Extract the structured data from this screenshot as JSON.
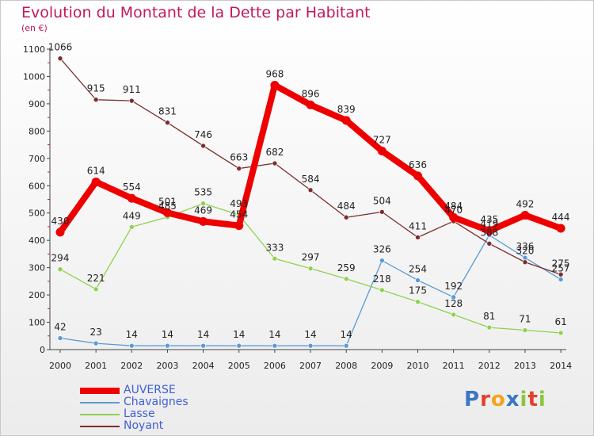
{
  "chart_data": {
    "type": "line",
    "title": "Evolution du Montant de la Dette par Habitant",
    "subtitle": "(en €)",
    "xlabel": "",
    "ylabel": "",
    "categories": [
      "2000",
      "2001",
      "2002",
      "2003",
      "2004",
      "2005",
      "2006",
      "2007",
      "2008",
      "2009",
      "2010",
      "2011",
      "2012",
      "2013",
      "2014"
    ],
    "ylim": [
      0,
      1100
    ],
    "yticks": [
      0,
      100,
      200,
      300,
      400,
      500,
      600,
      700,
      800,
      900,
      1000,
      1100
    ],
    "grid": false,
    "legend_position": "bottom-left",
    "series": [
      {
        "name": "AUVERSE",
        "color": "#ee0000",
        "values": [
          430,
          614,
          554,
          501,
          469,
          454,
          968,
          896,
          839,
          727,
          636,
          484,
          435,
          492,
          444
        ],
        "label_values": [
          "430",
          "614",
          "554",
          "501",
          "469",
          "454",
          "968",
          "896",
          "839",
          "727",
          "636",
          "484",
          "435",
          "492",
          "444"
        ]
      },
      {
        "name": "Chavaignes",
        "color": "#5b9bd5",
        "values": [
          42,
          23,
          14,
          14,
          14,
          14,
          14,
          14,
          14,
          326,
          254,
          192,
          419,
          336,
          257
        ],
        "label_values": [
          "42",
          "23",
          "14",
          "14",
          "14",
          "14",
          "14",
          "14",
          "14",
          "326",
          "254",
          "192",
          "419",
          "336",
          "257"
        ]
      },
      {
        "name": "Lasse",
        "color": "#8fd14f",
        "values": [
          294,
          221,
          449,
          485,
          535,
          493,
          333,
          297,
          259,
          218,
          175,
          128,
          81,
          71,
          61
        ],
        "label_values": [
          "294",
          "221",
          "449",
          "485",
          "535",
          "493",
          "333",
          "297",
          "259",
          "218",
          "175",
          "128",
          "81",
          "71",
          "61"
        ]
      },
      {
        "name": "Noyant",
        "color": "#7b2d2d",
        "values": [
          1066,
          915,
          911,
          831,
          746,
          663,
          682,
          584,
          484,
          504,
          411,
          470,
          388,
          320,
          275
        ],
        "label_values": [
          "1066",
          "915",
          "911",
          "831",
          "746",
          "663",
          "682",
          "584",
          "484",
          "504",
          "411",
          "470",
          "388",
          "320",
          "275"
        ]
      }
    ]
  },
  "brand": {
    "text": "Proxiti",
    "letters": [
      {
        "ch": "P",
        "color": "#3a76c4"
      },
      {
        "ch": "r",
        "color": "#e2412b"
      },
      {
        "ch": "o",
        "color": "#f2a51a"
      },
      {
        "ch": "x",
        "color": "#3a76c4"
      },
      {
        "ch": "i",
        "color": "#8cc63f"
      },
      {
        "ch": "t",
        "color": "#e2412b"
      },
      {
        "ch": "i",
        "color": "#8cc63f"
      }
    ]
  }
}
